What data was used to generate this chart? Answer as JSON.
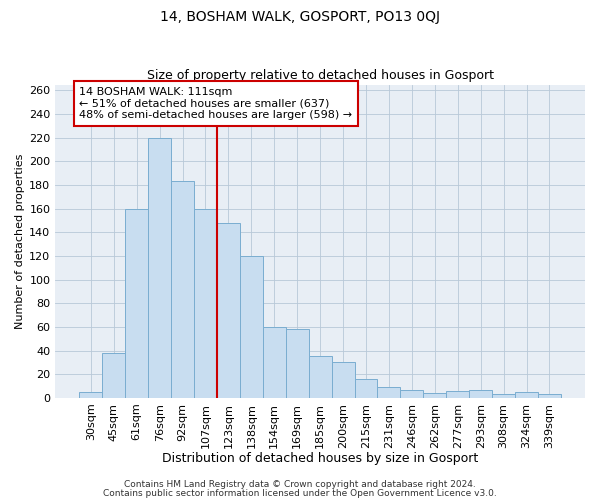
{
  "title": "14, BOSHAM WALK, GOSPORT, PO13 0QJ",
  "subtitle": "Size of property relative to detached houses in Gosport",
  "xlabel": "Distribution of detached houses by size in Gosport",
  "ylabel": "Number of detached properties",
  "bar_labels": [
    "30sqm",
    "45sqm",
    "61sqm",
    "76sqm",
    "92sqm",
    "107sqm",
    "123sqm",
    "138sqm",
    "154sqm",
    "169sqm",
    "185sqm",
    "200sqm",
    "215sqm",
    "231sqm",
    "246sqm",
    "262sqm",
    "277sqm",
    "293sqm",
    "308sqm",
    "324sqm",
    "339sqm"
  ],
  "bar_heights": [
    5,
    38,
    160,
    220,
    183,
    160,
    148,
    120,
    60,
    58,
    35,
    30,
    16,
    9,
    7,
    4,
    6,
    7,
    3,
    5,
    3
  ],
  "bar_color": "#c8ddf0",
  "bar_edge_color": "#7aadd0",
  "vline_x": 5.5,
  "vline_color": "#cc0000",
  "annotation_text": "14 BOSHAM WALK: 111sqm\n← 51% of detached houses are smaller (637)\n48% of semi-detached houses are larger (598) →",
  "annotation_box_color": "#ffffff",
  "annotation_box_edge": "#cc0000",
  "ylim": [
    0,
    265
  ],
  "yticks": [
    0,
    20,
    40,
    60,
    80,
    100,
    120,
    140,
    160,
    180,
    200,
    220,
    240,
    260
  ],
  "footer1": "Contains HM Land Registry data © Crown copyright and database right 2024.",
  "footer2": "Contains public sector information licensed under the Open Government Licence v3.0.",
  "title_fontsize": 10,
  "subtitle_fontsize": 9,
  "xlabel_fontsize": 9,
  "ylabel_fontsize": 8,
  "tick_fontsize": 8,
  "annotation_fontsize": 8,
  "footer_fontsize": 6.5,
  "bg_color": "#e8eef5"
}
